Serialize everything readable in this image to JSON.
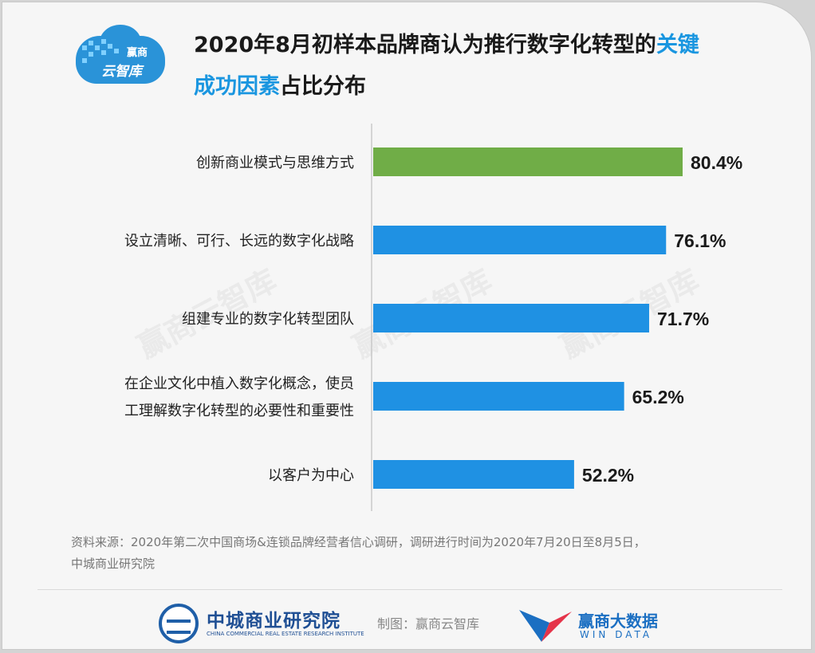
{
  "header": {
    "logo_line1": "赢商",
    "logo_line2": "云智库",
    "title_part1": "2020年8月初样本品牌商认为推行数字化转型的",
    "title_highlight1": "关键",
    "title_highlight2": "成功因素",
    "title_part2": "占比分布"
  },
  "chart_data": {
    "type": "bar",
    "orientation": "horizontal",
    "categories": [
      "创新商业模式与思维方式",
      "设立清晰、可行、长远的数字化战略",
      "组建专业的数字化转型团队",
      "在企业文化中植入数字化概念，使员工理解数字化转型的必要性和重要性",
      "以客户为中心"
    ],
    "category_lines": [
      [
        "创新商业模式与思维方式"
      ],
      [
        "设立清晰、可行、长远的数字化战略"
      ],
      [
        "组建专业的数字化转型团队"
      ],
      [
        "在企业文化中植入数字化概念，使员",
        "工理解数字化转型的必要性和重要性"
      ],
      [
        "以客户为中心"
      ]
    ],
    "values": [
      80.4,
      76.1,
      71.7,
      65.2,
      52.2
    ],
    "value_labels": [
      "80.4%",
      "76.1%",
      "71.7%",
      "65.2%",
      "52.2%"
    ],
    "bar_colors": [
      "#70ad47",
      "#1f91e3",
      "#1f91e3",
      "#1f91e3",
      "#1f91e3"
    ],
    "xlim": [
      0,
      100
    ],
    "grid": false
  },
  "source_line1": "资料来源：2020年第二次中国商场&连锁品牌经营者信心调研，调研进行时间为2020年7月20日至8月5日，",
  "source_line2": "中城商业研究院",
  "footer": {
    "org_name": "中城商业研究院",
    "org_name_en": "CHINA COMMERCIAL REAL ESTATE RESEARCH INSTITUTE",
    "maker": "制图：赢商云智库",
    "brand_cn": "赢商大数据",
    "brand_en": "WIN DATA"
  },
  "watermark": "赢商云智库",
  "colors": {
    "accent": "#1a96e0",
    "bar_primary": "#1f91e3",
    "bar_highlight": "#70ad47"
  }
}
